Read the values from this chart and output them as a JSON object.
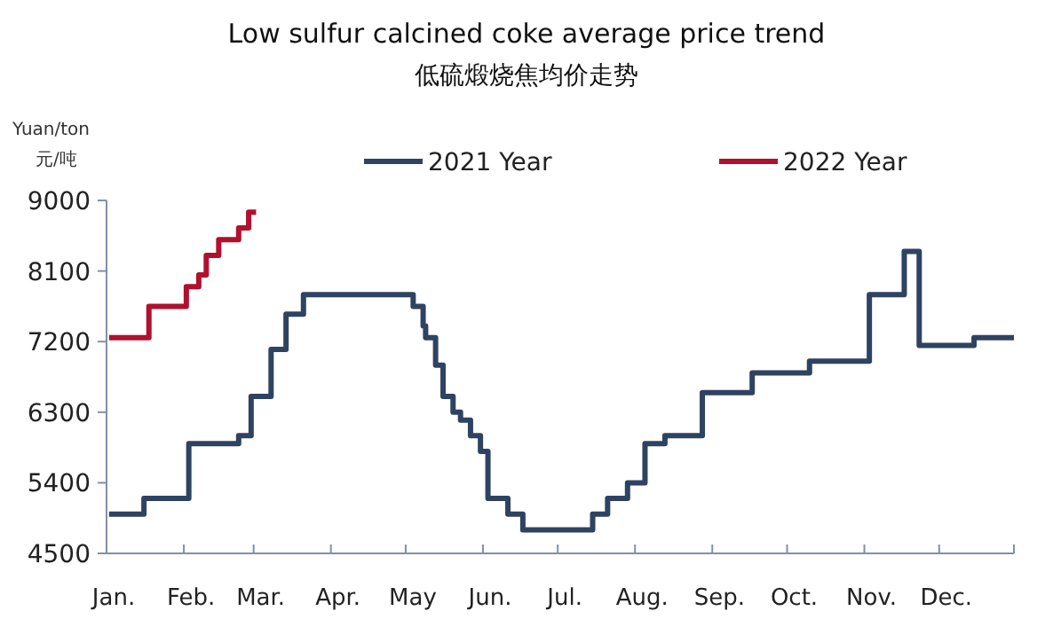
{
  "chart_data": {
    "type": "step",
    "title": "Low sulfur calcined coke average price trend",
    "subtitle": "低硫煅烧焦均价走势",
    "ylabel": "Yuan/ton\n元/吨",
    "xlim": [
      "--01-01",
      "--12-31"
    ],
    "xticks": [
      {
        "value": "--01-01",
        "label": "Jan."
      },
      {
        "value": "--02-01",
        "label": "Feb."
      },
      {
        "value": "--03-01",
        "label": "Mar."
      },
      {
        "value": "--04-01",
        "label": "Apr."
      },
      {
        "value": "--05-01",
        "label": "May"
      },
      {
        "value": "--06-01",
        "label": "Jun."
      },
      {
        "value": "--07-01",
        "label": "Jul."
      },
      {
        "value": "--08-01",
        "label": "Aug."
      },
      {
        "value": "--09-01",
        "label": "Sep."
      },
      {
        "value": "--10-01",
        "label": "Oct."
      },
      {
        "value": "--11-01",
        "label": "Nov."
      },
      {
        "value": "--12-01",
        "label": "Dec."
      },
      {
        "value": "--12-31",
        "label": null
      }
    ],
    "ylim": [
      4500,
      9000
    ],
    "yticks": [
      4500,
      5400,
      6300,
      7200,
      8100,
      9000
    ],
    "grid": false,
    "legend": "top",
    "marker": "none",
    "line_style": "solid",
    "series": [
      {
        "name": "2021 Year",
        "color": "#2e4361",
        "x": [
          "--01-02",
          "--01-16",
          "--02-03",
          "--02-23",
          "--02-28",
          "--03-08",
          "--03-14",
          "--03-21",
          "--05-04",
          "--05-08",
          "--05-09",
          "--05-13",
          "--05-16",
          "--05-20",
          "--05-23",
          "--05-27",
          "--05-31",
          "--06-03",
          "--06-11",
          "--06-17",
          "--07-15",
          "--07-21",
          "--07-29",
          "--08-05",
          "--08-13",
          "--08-28",
          "--09-17",
          "--10-10",
          "--11-03",
          "--11-17",
          "--11-23",
          "--12-15",
          "--12-31"
        ],
        "values": [
          5000,
          5200,
          5900,
          6000,
          6500,
          7100,
          7550,
          7800,
          7650,
          7400,
          7250,
          6900,
          6500,
          6300,
          6200,
          6000,
          5800,
          5200,
          5000,
          4800,
          5000,
          5200,
          5400,
          5900,
          6000,
          6550,
          6800,
          6950,
          7800,
          8350,
          7150,
          7250,
          7250
        ]
      },
      {
        "name": "2022 Year",
        "color": "#b0112e",
        "x": [
          "--01-02",
          "--01-18",
          "--02-02",
          "--02-07",
          "--02-10",
          "--02-15",
          "--02-23",
          "--02-27",
          "--03-02"
        ],
        "values": [
          7250,
          7650,
          7900,
          8050,
          8300,
          8500,
          8650,
          8850,
          8850
        ]
      }
    ]
  }
}
